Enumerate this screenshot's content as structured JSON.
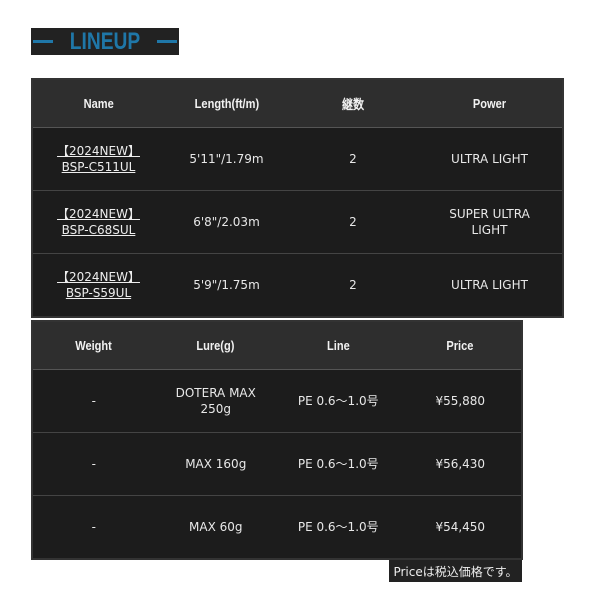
{
  "title": "LINEUP",
  "table1": {
    "headers": [
      "Name",
      "Length(ft/m)",
      "継数",
      "Power"
    ],
    "rows": [
      {
        "name1": "【2024NEW】",
        "name2": "BSP-C511UL",
        "length": "5'11\"/1.79m",
        "pieces": "2",
        "power": "ULTRA LIGHT"
      },
      {
        "name1": "【2024NEW】",
        "name2": "BSP-C68SUL",
        "length": "6'8\"/2.03m",
        "pieces": "2",
        "power": "SUPER ULTRA LIGHT"
      },
      {
        "name1": "【2024NEW】",
        "name2": "BSP-S59UL",
        "length": "5'9\"/1.75m",
        "pieces": "2",
        "power": "ULTRA LIGHT"
      }
    ]
  },
  "table2": {
    "headers": [
      "Weight",
      "Lure(g)",
      "Line",
      "Price"
    ],
    "rows": [
      {
        "weight": "-",
        "lure": "DOTERA MAX 250g",
        "line": "PE 0.6〜1.0号",
        "price": "¥55,880"
      },
      {
        "weight": "-",
        "lure": "MAX 160g",
        "line": "PE 0.6〜1.0号",
        "price": "¥56,430"
      },
      {
        "weight": "-",
        "lure": "MAX 60g",
        "line": "PE 0.6〜1.0号",
        "price": "¥54,450"
      }
    ]
  },
  "note": "Priceは税込価格です。",
  "colors": {
    "accent": "#1f77a8",
    "table_bg": "#1c1c1c",
    "header_bg": "#2e2e2e"
  }
}
